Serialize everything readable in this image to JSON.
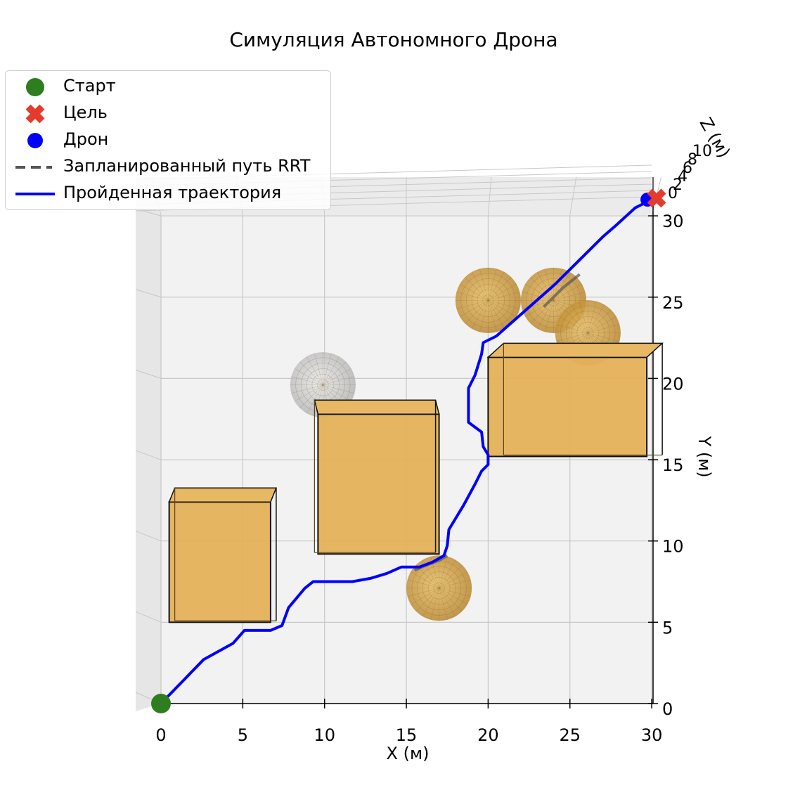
{
  "chart_data": {
    "type": "3d-scatter-line",
    "title": "Симуляция Автономного Дрона",
    "xlabel": "X (м)",
    "ylabel": "Y (м)",
    "zlabel": "Z (м)",
    "xlim": [
      0,
      30
    ],
    "ylim": [
      0,
      30
    ],
    "x_ticks": [
      "0",
      "5",
      "10",
      "15",
      "20",
      "25",
      "30"
    ],
    "y_ticks": [
      "0",
      "5",
      "10",
      "15",
      "20",
      "25",
      "30"
    ],
    "z_ticks": [
      "0",
      "2",
      "4",
      "6",
      "8",
      "10"
    ],
    "grid": true,
    "legend_position": "top-left",
    "legend": [
      {
        "label": "Старт",
        "marker": "circle",
        "color": "#2e7d1f"
      },
      {
        "label": "Цель",
        "marker": "x",
        "color": "#e53b2c"
      },
      {
        "label": "Дрон",
        "marker": "circle",
        "color": "#0000ff"
      },
      {
        "label": "Запланированный путь RRT",
        "marker": "dashed-line",
        "color": "#555555"
      },
      {
        "label": "Пройденная траектория",
        "marker": "line",
        "color": "#0000ff"
      }
    ],
    "start": {
      "x": 0,
      "y": 0
    },
    "goal": {
      "x": 30,
      "y": 31
    },
    "drone": {
      "x": 30,
      "y": 31
    },
    "trajectory": [
      [
        0,
        0
      ],
      [
        2.6,
        2.7
      ],
      [
        4.4,
        3.7
      ],
      [
        5.1,
        4.5
      ],
      [
        6.7,
        4.5
      ],
      [
        7.4,
        4.8
      ],
      [
        7.8,
        5.9
      ],
      [
        8.8,
        7.1
      ],
      [
        9.3,
        7.5
      ],
      [
        11.7,
        7.5
      ],
      [
        12.8,
        7.7
      ],
      [
        13.8,
        8.0
      ],
      [
        14.7,
        8.4
      ],
      [
        15.8,
        8.4
      ],
      [
        16.6,
        8.7
      ],
      [
        17.3,
        9.1
      ],
      [
        17.5,
        9.7
      ],
      [
        17.6,
        10.7
      ],
      [
        18.5,
        12.2
      ],
      [
        19.2,
        13.5
      ],
      [
        19.6,
        14.3
      ],
      [
        20.0,
        14.7
      ],
      [
        20.0,
        15.3
      ],
      [
        19.7,
        15.8
      ],
      [
        19.6,
        16.7
      ],
      [
        18.8,
        17.3
      ],
      [
        18.8,
        19.4
      ],
      [
        19.2,
        20.2
      ],
      [
        19.6,
        21.5
      ],
      [
        19.7,
        22.2
      ],
      [
        20.5,
        22.6
      ],
      [
        24.1,
        25.8
      ],
      [
        27.0,
        28.7
      ],
      [
        27.8,
        29.4
      ],
      [
        29.0,
        30.5
      ],
      [
        30.0,
        31.0
      ]
    ],
    "rrt_visible_segments": [
      [
        [
          15.5,
          8.2
        ],
        [
          16.2,
          8.5
        ],
        [
          17.0,
          8.8
        ],
        [
          17.5,
          9.1
        ]
      ],
      [
        [
          23.4,
          24.4
        ],
        [
          24.6,
          25.6
        ],
        [
          25.6,
          26.4
        ]
      ]
    ],
    "boxes": [
      {
        "x0": 0.5,
        "x1": 6.7,
        "y0": 5.0,
        "y1": 12.4
      },
      {
        "x0": 9.6,
        "x1": 17.0,
        "y0": 9.2,
        "y1": 17.8
      },
      {
        "x0": 20.0,
        "x1": 29.7,
        "y0": 15.2,
        "y1": 21.3
      }
    ],
    "spheres": [
      {
        "x": 9.9,
        "y": 19.6,
        "r": 2.0,
        "color": "gray"
      },
      {
        "x": 17.0,
        "y": 7.1,
        "r": 2.0,
        "color": "gold"
      },
      {
        "x": 20.0,
        "y": 24.8,
        "r": 2.0,
        "color": "gold"
      },
      {
        "x": 24.0,
        "y": 24.8,
        "r": 2.0,
        "color": "gold"
      },
      {
        "x": 26.1,
        "y": 22.8,
        "r": 2.0,
        "color": "gold"
      }
    ],
    "colors": {
      "box_fill": "#e4b15a",
      "box_edge": "#111111",
      "sphere_gold": "#d9a84a",
      "sphere_gray": "#bdbdbd",
      "trajectory": "#0000ff",
      "rrt": "#555555",
      "start": "#2e7d1f",
      "goal": "#e53b2c",
      "drone": "#0000ff",
      "pane": "#f2f2f2",
      "grid": "#c8c8c8"
    }
  }
}
